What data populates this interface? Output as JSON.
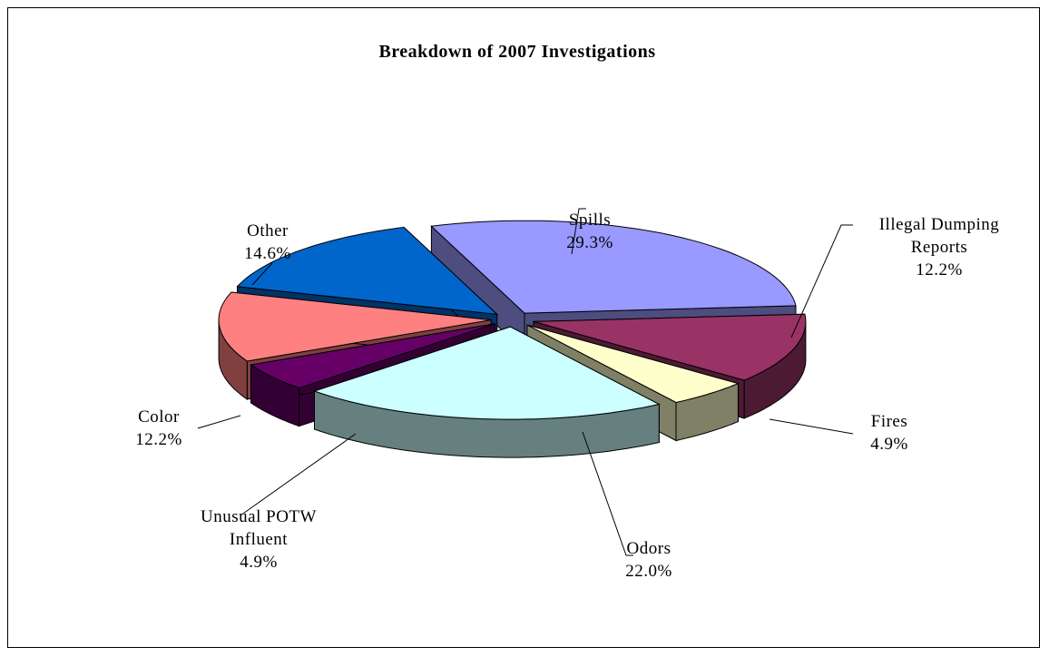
{
  "chart_data": {
    "type": "pie3d",
    "title": "Breakdown of 2007 Investigations",
    "categories": [
      "Spills",
      "Illegal Dumping Reports",
      "Fires",
      "Odors",
      "Unusual POTW Influent",
      "Color",
      "Other"
    ],
    "values": [
      29.3,
      12.2,
      4.9,
      22.0,
      4.9,
      12.2,
      14.6
    ],
    "value_labels": [
      "29.3%",
      "12.2%",
      "4.9%",
      "22.0%",
      "4.9%",
      "12.2%",
      "14.6%"
    ],
    "colors": [
      "#9999ff",
      "#993366",
      "#ffffcc",
      "#ccffff",
      "#660066",
      "#ff8080",
      "#0066cc"
    ]
  }
}
